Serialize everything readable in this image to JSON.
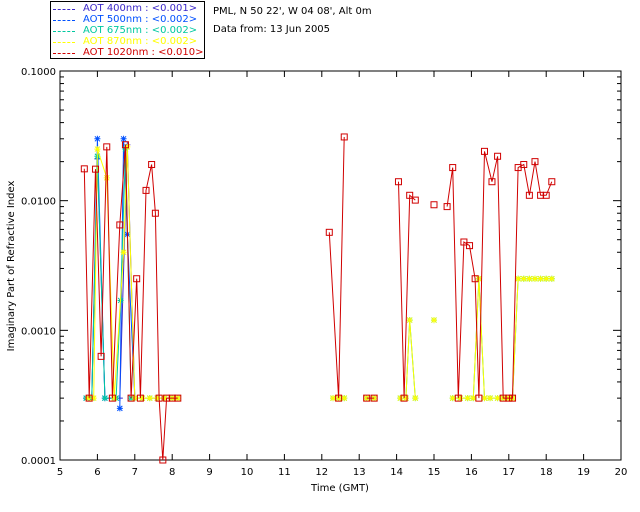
{
  "header": {
    "site": "PML, N 50 22', W 04 08', Alt 0m",
    "date": "Data from: 13 Jun 2005"
  },
  "legend": [
    {
      "label": "AOT  400nm : <0.001>",
      "color": "#3c28c8"
    },
    {
      "label": "AOT  500nm : <0.002>",
      "color": "#0050ff"
    },
    {
      "label": "AOT  675nm : <0.002>",
      "color": "#00c8a0"
    },
    {
      "label": "AOT  870nm : <0.002>",
      "color": "#ffff00"
    },
    {
      "label": "AOT 1020nm : <0.010>",
      "color": "#d00000"
    }
  ],
  "chart_data": {
    "type": "line",
    "title": "",
    "xlabel": "Time (GMT)",
    "ylabel": "Imaginary Part of Refractive Index",
    "xlim": [
      5,
      20
    ],
    "ylim": [
      0.0001,
      0.1
    ],
    "yscale": "log",
    "xticks": [
      "5",
      "6",
      "7",
      "8",
      "9",
      "10",
      "11",
      "12",
      "13",
      "14",
      "15",
      "16",
      "17",
      "18",
      "19",
      "20"
    ],
    "yticks": [
      "0.0001",
      "0.0010",
      "0.0100",
      "0.1000"
    ],
    "series": [
      {
        "name": "AOT 400nm",
        "color": "#3c28c8",
        "marker": "plus",
        "x": [
          5.7,
          5.85,
          6.0,
          6.2,
          6.4,
          6.6,
          6.8,
          7.0
        ],
        "y": [
          0.0003,
          0.0003,
          0.021,
          0.0003,
          0.0003,
          0.0003,
          0.027,
          0.0003
        ]
      },
      {
        "name": "AOT 500nm",
        "color": "#0050ff",
        "marker": "star",
        "x": [
          5.7,
          5.85,
          6.0,
          6.2,
          6.5,
          6.6,
          6.7,
          6.8,
          7.0
        ],
        "y": [
          0.0003,
          0.0003,
          0.03,
          0.0003,
          0.0003,
          0.00025,
          0.03,
          0.0055,
          0.0003
        ],
        "segments": [
          [
            0,
            4
          ],
          [
            5,
            8
          ]
        ]
      },
      {
        "name": "AOT 675nm",
        "color": "#00c8a0",
        "marker": "star",
        "x": [
          5.7,
          5.85,
          6.0,
          6.2,
          6.5,
          6.62,
          6.75,
          6.9,
          7.2,
          7.4,
          7.6,
          7.8,
          8.0,
          8.15,
          12.3,
          12.45,
          12.6,
          13.2,
          13.4,
          14.1,
          14.25,
          14.35,
          14.5,
          15.0,
          15.5,
          15.7,
          15.9,
          16.05,
          16.2,
          16.35,
          16.5,
          16.7,
          16.85,
          17.0,
          17.1,
          17.25,
          17.4,
          17.55,
          17.7,
          17.85,
          18.0,
          18.15
        ],
        "y": [
          0.0003,
          0.0003,
          0.022,
          0.0003,
          0.0003,
          0.0017,
          0.025,
          0.0003,
          0.0003,
          0.0003,
          0.0003,
          0.0003,
          0.0003,
          0.0003,
          0.0003,
          0.0003,
          0.0003,
          0.0003,
          0.0003,
          0.0003,
          0.0003,
          0.0012,
          0.0003,
          0.0012,
          0.0003,
          0.0003,
          0.0003,
          0.0003,
          0.0025,
          0.0003,
          0.0003,
          0.0003,
          0.0003,
          0.0003,
          0.0003,
          0.0025,
          0.0025,
          0.0025,
          0.0025,
          0.0025,
          0.0025,
          0.0025
        ],
        "segments": [
          [
            0,
            13
          ],
          [
            14,
            16
          ],
          [
            17,
            18
          ],
          [
            19,
            22
          ],
          [
            23,
            23
          ],
          [
            24,
            41
          ]
        ]
      },
      {
        "name": "AOT 870nm",
        "color": "#ffff00",
        "marker": "star",
        "x": [
          5.75,
          5.9,
          6.0,
          6.25,
          6.45,
          6.7,
          6.8,
          7.0,
          7.2,
          7.4,
          7.6,
          7.8,
          8.0,
          8.15,
          12.3,
          12.45,
          12.6,
          13.2,
          13.4,
          14.1,
          14.25,
          14.35,
          14.5,
          15.0,
          15.5,
          15.7,
          15.9,
          16.05,
          16.2,
          16.35,
          16.5,
          16.7,
          16.85,
          17.0,
          17.1,
          17.25,
          17.4,
          17.55,
          17.7,
          17.85,
          18.0,
          18.15
        ],
        "y": [
          0.0003,
          0.0003,
          0.025,
          0.015,
          0.0003,
          0.004,
          0.026,
          0.0003,
          0.0003,
          0.0003,
          0.0003,
          0.0003,
          0.0003,
          0.0003,
          0.0003,
          0.0003,
          0.0003,
          0.0003,
          0.0003,
          0.0003,
          0.0003,
          0.0012,
          0.0003,
          0.0012,
          0.0003,
          0.0003,
          0.0003,
          0.0003,
          0.0025,
          0.0003,
          0.0003,
          0.0003,
          0.0003,
          0.0003,
          0.0003,
          0.0025,
          0.0025,
          0.0025,
          0.0025,
          0.0025,
          0.0025,
          0.0025
        ],
        "segments": [
          [
            0,
            13
          ],
          [
            14,
            16
          ],
          [
            17,
            18
          ],
          [
            19,
            22
          ],
          [
            23,
            23
          ],
          [
            24,
            41
          ]
        ]
      },
      {
        "name": "AOT 1020nm",
        "color": "#d00000",
        "marker": "square",
        "x": [
          5.65,
          5.78,
          5.95,
          6.1,
          6.25,
          6.4,
          6.6,
          6.75,
          6.9,
          7.05,
          7.15,
          7.3,
          7.45,
          7.55,
          7.65,
          7.75,
          7.85,
          8.0,
          8.15,
          12.2,
          12.45,
          12.6,
          13.2,
          13.4,
          14.05,
          14.2,
          14.35,
          14.5,
          15.0,
          15.35,
          15.5,
          15.65,
          15.8,
          15.95,
          16.1,
          16.2,
          16.35,
          16.55,
          16.7,
          16.85,
          17.0,
          17.1,
          17.25,
          17.4,
          17.55,
          17.7,
          17.85,
          18.0,
          18.15
        ],
        "y": [
          0.0176,
          0.0003,
          0.0175,
          0.00063,
          0.026,
          0.0003,
          0.0065,
          0.027,
          0.0003,
          0.0025,
          0.0003,
          0.012,
          0.019,
          0.008,
          0.0003,
          0.0001,
          0.0003,
          0.0003,
          0.0003,
          0.0057,
          0.0003,
          0.031,
          0.0003,
          0.0003,
          0.014,
          0.0003,
          0.011,
          0.0101,
          0.0093,
          0.009,
          0.018,
          0.0003,
          0.0048,
          0.0045,
          0.0025,
          0.0003,
          0.024,
          0.014,
          0.022,
          0.0003,
          0.0003,
          0.0003,
          0.018,
          0.019,
          0.011,
          0.02,
          0.011,
          0.011,
          0.014
        ],
        "segments": [
          [
            0,
            18
          ],
          [
            19,
            21
          ],
          [
            22,
            23
          ],
          [
            24,
            27
          ],
          [
            28,
            28
          ],
          [
            29,
            48
          ]
        ]
      }
    ]
  }
}
